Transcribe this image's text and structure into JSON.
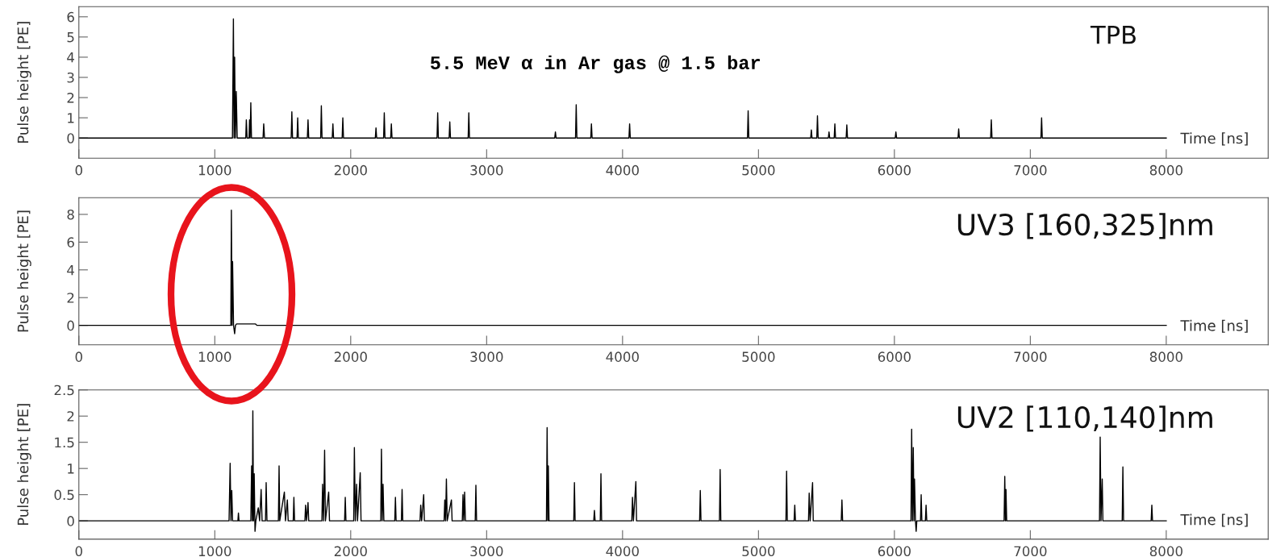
{
  "chart_data": [
    {
      "type": "line",
      "title": "TPB",
      "xlabel": "Time [ns]",
      "ylabel": "Pulse height [PE]",
      "annotations": [
        "5.5 MeV α in Ar gas @ 1.5 bar"
      ],
      "xlim": [
        0,
        8750
      ],
      "xticks": [
        0,
        1000,
        2000,
        3000,
        4000,
        5000,
        6000,
        7000,
        8000
      ],
      "ylim": [
        -1,
        6.5
      ],
      "yticks": [
        0,
        1,
        2,
        3,
        4,
        5,
        6
      ],
      "grid": false,
      "legend": false,
      "marker": "none",
      "line_style": "solid",
      "series": [
        {
          "color": "#000000",
          "x": [
            0,
            1100,
            1130,
            1137,
            1142,
            1146,
            1152,
            1158,
            1165,
            1228,
            1232,
            1238,
            1252,
            1256,
            1260,
            1265,
            1270,
            1355,
            1360,
            1366,
            1562,
            1567,
            1572,
            1605,
            1610,
            1615,
            1681,
            1686,
            1691,
            1779,
            1784,
            1789,
            1864,
            1869,
            1874,
            1937,
            1942,
            1947,
            2181,
            2186,
            2191,
            2242,
            2247,
            2252,
            2294,
            2299,
            2304,
            2635,
            2640,
            2645,
            2724,
            2729,
            2734,
            2864,
            2869,
            2874,
            3501,
            3506,
            3511,
            3654,
            3659,
            3664,
            3766,
            3771,
            3776,
            4047,
            4052,
            4057,
            4919,
            4924,
            4929,
            5384,
            5389,
            5394,
            5429,
            5434,
            5439,
            5514,
            5519,
            5524,
            5557,
            5562,
            5567,
            5645,
            5650,
            5655,
            6006,
            6011,
            6016,
            6468,
            6473,
            6478,
            6708,
            6713,
            6718,
            7078,
            7083,
            7088,
            8000
          ],
          "values": [
            0,
            0,
            0,
            5.9,
            0,
            4.0,
            0,
            2.3,
            0,
            0,
            0.9,
            0,
            0,
            0.9,
            0,
            1.75,
            0,
            0,
            0.7,
            0,
            0,
            1.3,
            0,
            0,
            1.0,
            0,
            0,
            0.9,
            0,
            0,
            1.6,
            0,
            0,
            0.7,
            0,
            0,
            1.0,
            0,
            0,
            0.5,
            0,
            0,
            1.25,
            0,
            0,
            0.7,
            0,
            0,
            1.25,
            0,
            0,
            0.8,
            0,
            0,
            1.25,
            0,
            0,
            0.3,
            0,
            0,
            1.65,
            0,
            0,
            0.7,
            0,
            0,
            0.7,
            0,
            0,
            1.35,
            0,
            0,
            0.4,
            0,
            0,
            1.1,
            0,
            0,
            0.3,
            0,
            0,
            0.7,
            0,
            0,
            0.65,
            0,
            0,
            0.3,
            0,
            0,
            0.45,
            0,
            0,
            0.9,
            0,
            0,
            1.0,
            0,
            0
          ]
        }
      ]
    },
    {
      "type": "line",
      "title": "UV3 [160,325]nm",
      "xlabel": "Time [ns]",
      "ylabel": "Pulse height [PE]",
      "xlim": [
        0,
        8750
      ],
      "xticks": [
        0,
        1000,
        2000,
        3000,
        4000,
        5000,
        6000,
        7000,
        8000
      ],
      "ylim": [
        -1.4,
        9.2
      ],
      "yticks": [
        0,
        2,
        4,
        6,
        8
      ],
      "grid": false,
      "legend": false,
      "marker": "none",
      "line_style": "solid",
      "series": [
        {
          "color": "#000000",
          "x": [
            0,
            1110,
            1118,
            1122,
            1127,
            1131,
            1138,
            1146,
            1152,
            1160,
            1300,
            1310,
            8000
          ],
          "values": [
            0,
            0,
            0,
            8.3,
            0,
            4.6,
            0,
            -0.6,
            0,
            0.1,
            0.1,
            0,
            0
          ]
        }
      ]
    },
    {
      "type": "line",
      "title": "UV2 [110,140]nm",
      "xlabel": "Time [ns]",
      "ylabel": "Pulse height [PE]",
      "xlim": [
        0,
        8750
      ],
      "xticks": [
        0,
        1000,
        2000,
        3000,
        4000,
        5000,
        6000,
        7000,
        8000
      ],
      "ylim": [
        -0.35,
        2.5
      ],
      "yticks": [
        0,
        0.5,
        1,
        1.5,
        2,
        2.5
      ],
      "grid": false,
      "legend": false,
      "marker": "none",
      "line_style": "solid",
      "series": [
        {
          "color": "#000000",
          "x": [
            0,
            1105,
            1113,
            1119,
            1125,
            1131,
            1170,
            1174,
            1178,
            1265,
            1271,
            1276,
            1280,
            1285,
            1290,
            1296,
            1302,
            1320,
            1330,
            1341,
            1348,
            1373,
            1378,
            1384,
            1468,
            1473,
            1478,
            1512,
            1520,
            1534,
            1540,
            1577,
            1582,
            1587,
            1663,
            1668,
            1675,
            1686,
            1691,
            1788,
            1793,
            1800,
            1808,
            1814,
            1838,
            1844,
            1955,
            1960,
            1965,
            2022,
            2027,
            2034,
            2043,
            2050,
            2070,
            2076,
            2221,
            2226,
            2232,
            2238,
            2244,
            2324,
            2329,
            2334,
            2373,
            2378,
            2383,
            2510,
            2515,
            2522,
            2537,
            2542,
            2687,
            2692,
            2698,
            2704,
            2710,
            2741,
            2746,
            2821,
            2826,
            2832,
            2838,
            2844,
            2916,
            2921,
            2926,
            3440,
            3445,
            3450,
            3454,
            3459,
            3641,
            3646,
            3651,
            3788,
            3793,
            3798,
            3836,
            3841,
            3846,
            4068,
            4073,
            4080,
            4098,
            4103,
            4567,
            4572,
            4577,
            4713,
            4718,
            4723,
            5202,
            5207,
            5212,
            5262,
            5267,
            5272,
            5368,
            5373,
            5380,
            5398,
            5403,
            5609,
            5614,
            5619,
            6122,
            6127,
            6133,
            6139,
            6144,
            6148,
            6155,
            6160,
            6165,
            6192,
            6197,
            6202,
            6228,
            6233,
            6238,
            6807,
            6812,
            6817,
            6821,
            6826,
            7509,
            7514,
            7520,
            7529,
            7534,
            7676,
            7681,
            7686,
            7889,
            7894,
            7899,
            8000
          ],
          "values": [
            0,
            0,
            1.1,
            0,
            0.58,
            0,
            0,
            0.15,
            0,
            0,
            1.05,
            0,
            2.1,
            0,
            0.9,
            -0.2,
            0,
            0.25,
            0,
            0.6,
            0,
            0,
            0.73,
            0,
            0,
            1.05,
            0,
            0.55,
            0,
            0.4,
            0,
            0,
            0.45,
            0,
            0,
            0.3,
            0,
            0.35,
            0,
            0,
            0.7,
            0,
            1.35,
            0,
            0.55,
            0,
            0,
            0.45,
            0,
            0,
            1.4,
            0,
            0.7,
            0,
            0.92,
            0,
            0,
            1.37,
            0,
            0.7,
            0,
            0,
            0.45,
            0,
            0,
            0.6,
            0,
            0,
            0.3,
            0,
            0.5,
            0,
            0,
            0.4,
            0,
            0.8,
            0,
            0.4,
            0,
            0,
            0.5,
            0,
            0.55,
            0,
            0,
            0.68,
            0,
            0,
            1.78,
            0,
            1.05,
            0,
            0,
            0.73,
            0,
            0,
            0.2,
            0,
            0,
            0.9,
            0,
            0,
            0.45,
            0,
            0.75,
            0,
            0,
            0.58,
            0,
            0,
            0.98,
            0,
            0,
            0.95,
            0,
            0,
            0.3,
            0,
            0,
            0.53,
            0,
            0.73,
            0,
            0,
            0.4,
            0,
            0,
            1.75,
            0,
            1.4,
            0,
            0.8,
            0,
            -0.2,
            0,
            0,
            0.5,
            0,
            0,
            0.3,
            0,
            0,
            0.85,
            0,
            0.6,
            0,
            0,
            1.6,
            0,
            0.8,
            0,
            0,
            1.03,
            0,
            0,
            0.3,
            0,
            0
          ]
        }
      ]
    }
  ]
}
